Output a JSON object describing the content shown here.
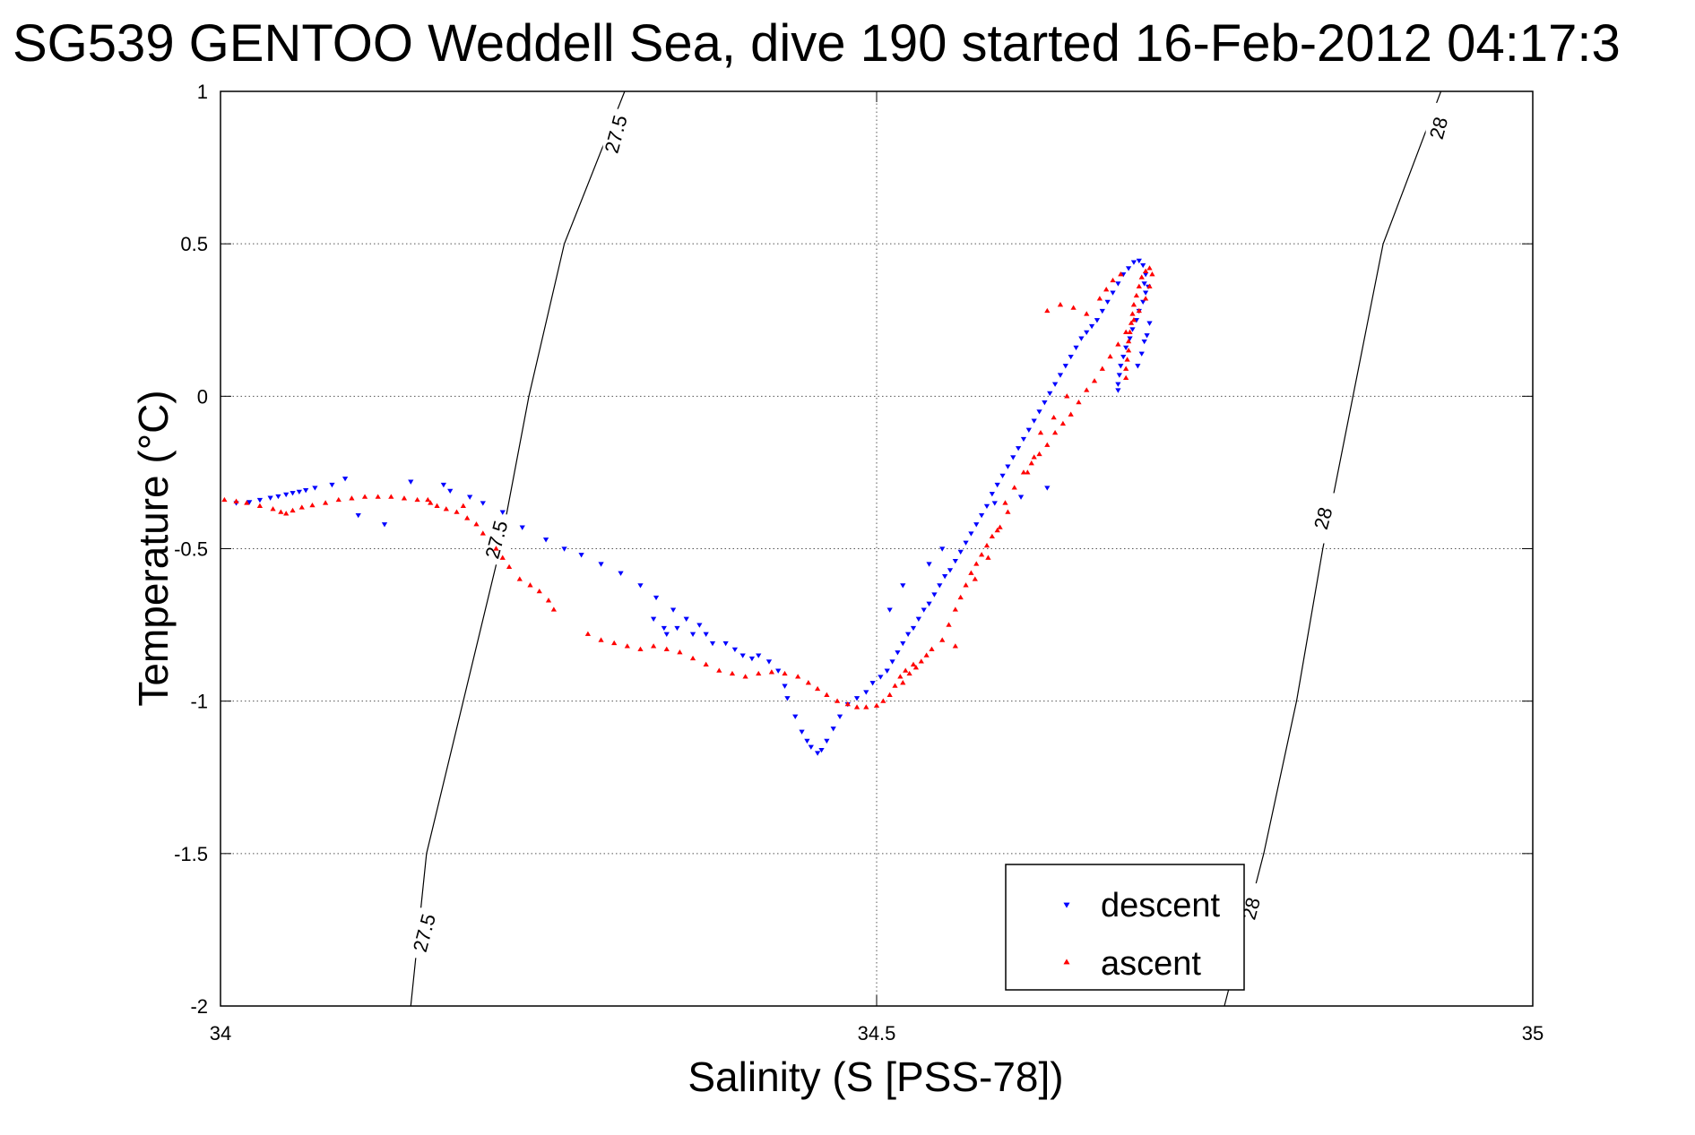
{
  "chart_data": {
    "type": "scatter",
    "title": "SG539 GENTOO Weddell Sea, dive 190 started 16-Feb-2012 04:17:3",
    "xlabel": "Salinity (S [PSS-78])",
    "ylabel": "Temperature (°C)",
    "xlim": [
      34,
      35
    ],
    "ylim": [
      -2,
      1
    ],
    "xticks": [
      34,
      34.5,
      35
    ],
    "xtick_labels": [
      "34",
      "34.5",
      "35"
    ],
    "yticks": [
      -2,
      -1.5,
      -1,
      -0.5,
      0,
      0.5,
      1
    ],
    "ytick_labels": [
      "-2",
      "-1.5",
      "-1",
      "-0.5",
      "0",
      "0.5",
      "1"
    ],
    "grid": true,
    "legend_position": "bottom-right",
    "density_contours": [
      {
        "level": "27.5",
        "points": [
          [
            34.145,
            -2.0
          ],
          [
            34.157,
            -1.5
          ],
          [
            34.185,
            -1.0
          ],
          [
            34.213,
            -0.5
          ],
          [
            34.235,
            0.0
          ],
          [
            34.262,
            0.5
          ],
          [
            34.308,
            1.0
          ]
        ],
        "labels": [
          {
            "text": "27.5",
            "s": 34.301,
            "t": 0.86
          },
          {
            "text": "27.5",
            "s": 34.21,
            "t": -0.47
          },
          {
            "text": "27.5",
            "s": 34.155,
            "t": -1.76
          }
        ]
      },
      {
        "level": "28",
        "points": [
          [
            34.765,
            -2.0
          ],
          [
            34.795,
            -1.5
          ],
          [
            34.82,
            -1.0
          ],
          [
            34.84,
            -0.5
          ],
          [
            34.863,
            0.0
          ],
          [
            34.886,
            0.5
          ],
          [
            34.93,
            1.0
          ]
        ],
        "labels": [
          {
            "text": "28",
            "s": 34.928,
            "t": 0.88
          },
          {
            "text": "28",
            "s": 34.84,
            "t": -0.4
          },
          {
            "text": "28",
            "s": 34.785,
            "t": -1.68
          }
        ]
      }
    ],
    "series": [
      {
        "name": "descent",
        "color": "#0000ff",
        "marker": "triangle-down",
        "points": [
          [
            34.012,
            -0.35
          ],
          [
            34.022,
            -0.347
          ],
          [
            34.03,
            -0.34
          ],
          [
            34.038,
            -0.333
          ],
          [
            34.044,
            -0.328
          ],
          [
            34.05,
            -0.322
          ],
          [
            34.055,
            -0.317
          ],
          [
            34.06,
            -0.313
          ],
          [
            34.065,
            -0.308
          ],
          [
            34.072,
            -0.3
          ],
          [
            34.085,
            -0.29
          ],
          [
            34.095,
            -0.27
          ],
          [
            34.105,
            -0.39
          ],
          [
            34.125,
            -0.42
          ],
          [
            34.145,
            -0.28
          ],
          [
            34.17,
            -0.29
          ],
          [
            34.175,
            -0.31
          ],
          [
            34.19,
            -0.33
          ],
          [
            34.2,
            -0.35
          ],
          [
            34.215,
            -0.38
          ],
          [
            34.23,
            -0.43
          ],
          [
            34.248,
            -0.47
          ],
          [
            34.262,
            -0.5
          ],
          [
            34.275,
            -0.52
          ],
          [
            34.29,
            -0.55
          ],
          [
            34.305,
            -0.58
          ],
          [
            34.32,
            -0.62
          ],
          [
            34.332,
            -0.66
          ],
          [
            34.345,
            -0.7
          ],
          [
            34.355,
            -0.73
          ],
          [
            34.365,
            -0.75
          ],
          [
            34.37,
            -0.78
          ],
          [
            34.33,
            -0.73
          ],
          [
            34.338,
            -0.76
          ],
          [
            34.34,
            -0.78
          ],
          [
            34.348,
            -0.76
          ],
          [
            34.36,
            -0.78
          ],
          [
            34.375,
            -0.81
          ],
          [
            34.385,
            -0.81
          ],
          [
            34.392,
            -0.83
          ],
          [
            34.398,
            -0.85
          ],
          [
            34.405,
            -0.86
          ],
          [
            34.41,
            -0.85
          ],
          [
            34.418,
            -0.87
          ],
          [
            34.425,
            -0.9
          ],
          [
            34.43,
            -0.95
          ],
          [
            34.432,
            -0.99
          ],
          [
            34.438,
            -1.05
          ],
          [
            34.443,
            -1.1
          ],
          [
            34.447,
            -1.13
          ],
          [
            34.45,
            -1.15
          ],
          [
            34.455,
            -1.17
          ],
          [
            34.458,
            -1.16
          ],
          [
            34.462,
            -1.13
          ],
          [
            34.467,
            -1.09
          ],
          [
            34.472,
            -1.05
          ],
          [
            34.478,
            -1.01
          ],
          [
            34.485,
            -0.99
          ],
          [
            34.492,
            -0.97
          ],
          [
            34.497,
            -0.94
          ],
          [
            34.503,
            -0.92
          ],
          [
            34.508,
            -0.9
          ],
          [
            34.512,
            -0.87
          ],
          [
            34.516,
            -0.84
          ],
          [
            34.52,
            -0.81
          ],
          [
            34.524,
            -0.78
          ],
          [
            34.528,
            -0.76
          ],
          [
            34.532,
            -0.73
          ],
          [
            34.536,
            -0.7
          ],
          [
            34.54,
            -0.68
          ],
          [
            34.544,
            -0.65
          ],
          [
            34.548,
            -0.62
          ],
          [
            34.552,
            -0.59
          ],
          [
            34.556,
            -0.57
          ],
          [
            34.56,
            -0.54
          ],
          [
            34.564,
            -0.51
          ],
          [
            34.568,
            -0.48
          ],
          [
            34.572,
            -0.45
          ],
          [
            34.576,
            -0.42
          ],
          [
            34.58,
            -0.39
          ],
          [
            34.584,
            -0.36
          ],
          [
            34.588,
            -0.32
          ],
          [
            34.592,
            -0.29
          ],
          [
            34.596,
            -0.26
          ],
          [
            34.6,
            -0.23
          ],
          [
            34.604,
            -0.2
          ],
          [
            34.608,
            -0.17
          ],
          [
            34.612,
            -0.14
          ],
          [
            34.616,
            -0.11
          ],
          [
            34.62,
            -0.08
          ],
          [
            34.624,
            -0.05
          ],
          [
            34.628,
            -0.02
          ],
          [
            34.632,
            0.01
          ],
          [
            34.636,
            0.04
          ],
          [
            34.64,
            0.07
          ],
          [
            34.644,
            0.1
          ],
          [
            34.648,
            0.13
          ],
          [
            34.652,
            0.16
          ],
          [
            34.656,
            0.19
          ],
          [
            34.66,
            0.21
          ],
          [
            34.664,
            0.23
          ],
          [
            34.668,
            0.25
          ],
          [
            34.672,
            0.28
          ],
          [
            34.676,
            0.31
          ],
          [
            34.68,
            0.34
          ],
          [
            34.684,
            0.37
          ],
          [
            34.688,
            0.4
          ],
          [
            34.692,
            0.42
          ],
          [
            34.696,
            0.44
          ],
          [
            34.7,
            0.445
          ],
          [
            34.703,
            0.43
          ],
          [
            34.705,
            0.4
          ],
          [
            34.704,
            0.37
          ],
          [
            34.705,
            0.34
          ],
          [
            34.703,
            0.31
          ],
          [
            34.7,
            0.28
          ],
          [
            34.698,
            0.25
          ],
          [
            34.695,
            0.22
          ],
          [
            34.693,
            0.19
          ],
          [
            34.69,
            0.16
          ],
          [
            34.688,
            0.13
          ],
          [
            34.686,
            0.1
          ],
          [
            34.685,
            0.07
          ],
          [
            34.684,
            0.04
          ],
          [
            34.684,
            0.02
          ],
          [
            34.708,
            0.24
          ],
          [
            34.706,
            0.2
          ],
          [
            34.707,
            0.36
          ],
          [
            34.704,
            0.18
          ],
          [
            34.702,
            0.14
          ],
          [
            34.699,
            0.1
          ],
          [
            34.63,
            -0.3
          ],
          [
            34.61,
            -0.33
          ],
          [
            34.59,
            -0.35
          ],
          [
            34.55,
            -0.5
          ],
          [
            34.54,
            -0.55
          ],
          [
            34.52,
            -0.62
          ],
          [
            34.51,
            -0.7
          ]
        ]
      },
      {
        "name": "ascent",
        "color": "#ff0000",
        "marker": "triangle-up",
        "points": [
          [
            34.003,
            -0.34
          ],
          [
            34.012,
            -0.345
          ],
          [
            34.02,
            -0.35
          ],
          [
            34.03,
            -0.36
          ],
          [
            34.04,
            -0.37
          ],
          [
            34.046,
            -0.38
          ],
          [
            34.05,
            -0.385
          ],
          [
            34.055,
            -0.375
          ],
          [
            34.062,
            -0.365
          ],
          [
            34.07,
            -0.358
          ],
          [
            34.08,
            -0.35
          ],
          [
            34.09,
            -0.34
          ],
          [
            34.1,
            -0.335
          ],
          [
            34.11,
            -0.33
          ],
          [
            34.12,
            -0.33
          ],
          [
            34.13,
            -0.33
          ],
          [
            34.14,
            -0.335
          ],
          [
            34.15,
            -0.34
          ],
          [
            34.16,
            -0.35
          ],
          [
            34.165,
            -0.36
          ],
          [
            34.172,
            -0.37
          ],
          [
            34.18,
            -0.38
          ],
          [
            34.188,
            -0.4
          ],
          [
            34.195,
            -0.42
          ],
          [
            34.185,
            -0.36
          ],
          [
            34.158,
            -0.34
          ],
          [
            34.2,
            -0.45
          ],
          [
            34.21,
            -0.5
          ],
          [
            34.215,
            -0.53
          ],
          [
            34.22,
            -0.56
          ],
          [
            34.228,
            -0.6
          ],
          [
            34.236,
            -0.62
          ],
          [
            34.243,
            -0.64
          ],
          [
            34.25,
            -0.67
          ],
          [
            34.254,
            -0.7
          ],
          [
            34.28,
            -0.78
          ],
          [
            34.29,
            -0.8
          ],
          [
            34.3,
            -0.81
          ],
          [
            34.31,
            -0.82
          ],
          [
            34.32,
            -0.83
          ],
          [
            34.33,
            -0.82
          ],
          [
            34.34,
            -0.83
          ],
          [
            34.35,
            -0.84
          ],
          [
            34.36,
            -0.86
          ],
          [
            34.37,
            -0.88
          ],
          [
            34.38,
            -0.9
          ],
          [
            34.39,
            -0.91
          ],
          [
            34.4,
            -0.92
          ],
          [
            34.41,
            -0.91
          ],
          [
            34.42,
            -0.905
          ],
          [
            34.43,
            -0.91
          ],
          [
            34.44,
            -0.92
          ],
          [
            34.448,
            -0.94
          ],
          [
            34.455,
            -0.96
          ],
          [
            34.462,
            -0.98
          ],
          [
            34.47,
            -1.0
          ],
          [
            34.478,
            -1.01
          ],
          [
            34.485,
            -1.02
          ],
          [
            34.492,
            -1.02
          ],
          [
            34.5,
            -1.015
          ],
          [
            34.505,
            -1.0
          ],
          [
            34.51,
            -0.98
          ],
          [
            34.514,
            -0.95
          ],
          [
            34.518,
            -0.92
          ],
          [
            34.522,
            -0.9
          ],
          [
            34.528,
            -0.88
          ],
          [
            34.534,
            -0.87
          ],
          [
            34.52,
            -0.94
          ],
          [
            34.525,
            -0.91
          ],
          [
            34.53,
            -0.89
          ],
          [
            34.538,
            -0.85
          ],
          [
            34.542,
            -0.83
          ],
          [
            34.55,
            -0.8
          ],
          [
            34.555,
            -0.75
          ],
          [
            34.56,
            -0.7
          ],
          [
            34.564,
            -0.66
          ],
          [
            34.568,
            -0.62
          ],
          [
            34.572,
            -0.58
          ],
          [
            34.576,
            -0.55
          ],
          [
            34.58,
            -0.52
          ],
          [
            34.584,
            -0.49
          ],
          [
            34.588,
            -0.46
          ],
          [
            34.594,
            -0.43
          ],
          [
            34.6,
            -0.38
          ],
          [
            34.56,
            -0.82
          ],
          [
            34.575,
            -0.6
          ],
          [
            34.585,
            -0.53
          ],
          [
            34.592,
            -0.44
          ],
          [
            34.598,
            -0.35
          ],
          [
            34.605,
            -0.3
          ],
          [
            34.612,
            -0.25
          ],
          [
            34.618,
            -0.22
          ],
          [
            34.624,
            -0.19
          ],
          [
            34.63,
            -0.16
          ],
          [
            34.636,
            -0.12
          ],
          [
            34.642,
            -0.09
          ],
          [
            34.648,
            -0.06
          ],
          [
            34.654,
            -0.02
          ],
          [
            34.66,
            0.02
          ],
          [
            34.666,
            0.05
          ],
          [
            34.672,
            0.09
          ],
          [
            34.678,
            0.13
          ],
          [
            34.684,
            0.17
          ],
          [
            34.69,
            0.21
          ],
          [
            34.696,
            0.25
          ],
          [
            34.7,
            0.28
          ],
          [
            34.705,
            0.32
          ],
          [
            34.708,
            0.36
          ],
          [
            34.71,
            0.4
          ],
          [
            34.708,
            0.42
          ],
          [
            34.705,
            0.41
          ],
          [
            34.702,
            0.39
          ],
          [
            34.7,
            0.36
          ],
          [
            34.698,
            0.33
          ],
          [
            34.696,
            0.3
          ],
          [
            34.695,
            0.27
          ],
          [
            34.694,
            0.24
          ],
          [
            34.693,
            0.21
          ],
          [
            34.692,
            0.18
          ],
          [
            34.692,
            0.15
          ],
          [
            34.691,
            0.12
          ],
          [
            34.69,
            0.09
          ],
          [
            34.69,
            0.06
          ],
          [
            34.64,
            0.3
          ],
          [
            34.63,
            0.28
          ],
          [
            34.65,
            0.29
          ],
          [
            34.66,
            0.27
          ],
          [
            34.67,
            0.32
          ],
          [
            34.675,
            0.35
          ],
          [
            34.68,
            0.38
          ],
          [
            34.686,
            0.4
          ],
          [
            34.62,
            -0.2
          ],
          [
            34.615,
            -0.25
          ],
          [
            34.625,
            -0.12
          ],
          [
            34.635,
            -0.07
          ],
          [
            34.645,
            0.0
          ]
        ]
      }
    ]
  }
}
